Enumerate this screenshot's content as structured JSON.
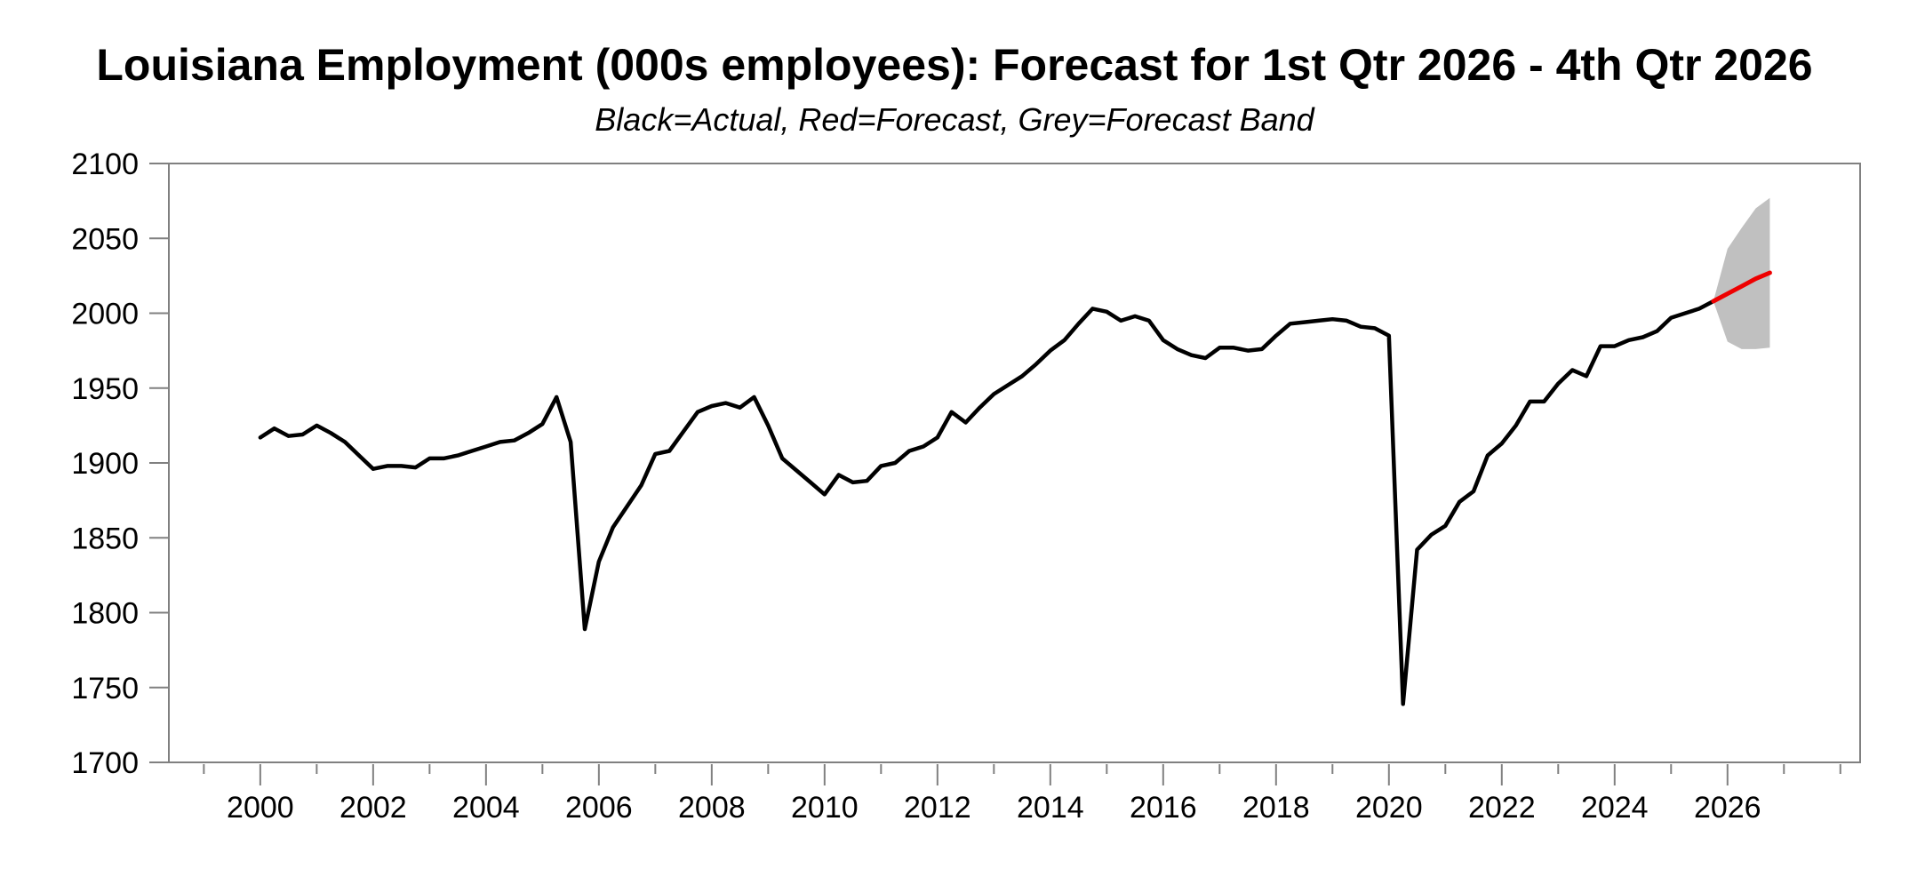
{
  "title": "Louisiana Employment (000s employees): Forecast for 1st Qtr 2026 - 4th Qtr 2026",
  "subtitle": "Black=Actual, Red=Forecast, Grey=Forecast Band",
  "colors": {
    "actual_line": "#000000",
    "forecast_line": "#ee0000",
    "forecast_band": "#c0c0c0",
    "frame": "#808080",
    "tick": "#808080",
    "label_text": "#000000",
    "background": "#ffffff"
  },
  "chart_data": {
    "type": "line",
    "title": "Louisiana Employment (000s employees): Forecast for 1st Qtr 2026 - 4th Qtr 2026",
    "subtitle": "Black=Actual, Red=Forecast, Grey=Forecast Band",
    "ylabel": "",
    "xlabel": "",
    "ylim": [
      1700,
      2100
    ],
    "xlim": [
      1998.38,
      2028.35
    ],
    "grid": false,
    "legend": "none (color-coded note in subtitle)",
    "y_ticks": [
      1700,
      1750,
      1800,
      1850,
      1900,
      1950,
      2000,
      2050,
      2100
    ],
    "x_ticks_major": [
      2000,
      2002,
      2004,
      2006,
      2008,
      2010,
      2012,
      2014,
      2016,
      2018,
      2020,
      2022,
      2024,
      2026
    ],
    "x_ticks_minor": [
      1999,
      2001,
      2003,
      2005,
      2007,
      2009,
      2011,
      2013,
      2015,
      2017,
      2019,
      2021,
      2023,
      2025,
      2027,
      2028
    ],
    "series": [
      {
        "name": "Actual",
        "role": "actual",
        "x_start": 2000.0,
        "x_step": 0.25,
        "frequency": "quarterly (2000 Q1 - 2025 Q4)",
        "values": [
          1917,
          1923,
          1918,
          1919,
          1925,
          1920,
          1914,
          1905,
          1896,
          1898,
          1898,
          1897,
          1903,
          1903,
          1905,
          1908,
          1911,
          1914,
          1915,
          1920,
          1926,
          1944,
          1914,
          1789,
          1834,
          1857,
          1871,
          1885,
          1906,
          1908,
          1921,
          1934,
          1938,
          1940,
          1937,
          1944,
          1925,
          1903,
          1895,
          1887,
          1879,
          1892,
          1887,
          1888,
          1898,
          1900,
          1908,
          1911,
          1917,
          1934,
          1927,
          1937,
          1946,
          1952,
          1958,
          1966,
          1975,
          1982,
          1993,
          2003,
          2001,
          1995,
          1998,
          1995,
          1982,
          1976,
          1972,
          1970,
          1977,
          1977,
          1975,
          1976,
          1985,
          1993,
          1994,
          1995,
          1996,
          1995,
          1991,
          1990,
          1985,
          1739,
          1842,
          1852,
          1858,
          1874,
          1881,
          1905,
          1913,
          1925,
          1941,
          1941,
          1953,
          1962,
          1958,
          1978,
          1978,
          1982,
          1984,
          1988,
          1997,
          2000,
          2003,
          2008
        ]
      },
      {
        "name": "Forecast",
        "role": "forecast",
        "frequency": "quarterly (2026 Q1 - 2026 Q4, anchored at last actual 2025 Q4)",
        "x": [
          2025.75,
          2026.0,
          2026.25,
          2026.5,
          2026.75
        ],
        "values": [
          2008,
          2013,
          2018,
          2023,
          2027
        ]
      },
      {
        "name": "Forecast Band",
        "role": "band",
        "x": [
          2025.75,
          2026.0,
          2026.25,
          2026.5,
          2026.75
        ],
        "upper": [
          2008,
          2043,
          2057,
          2070,
          2077
        ],
        "lower": [
          2008,
          1981,
          1976,
          1976,
          1977
        ]
      }
    ]
  }
}
